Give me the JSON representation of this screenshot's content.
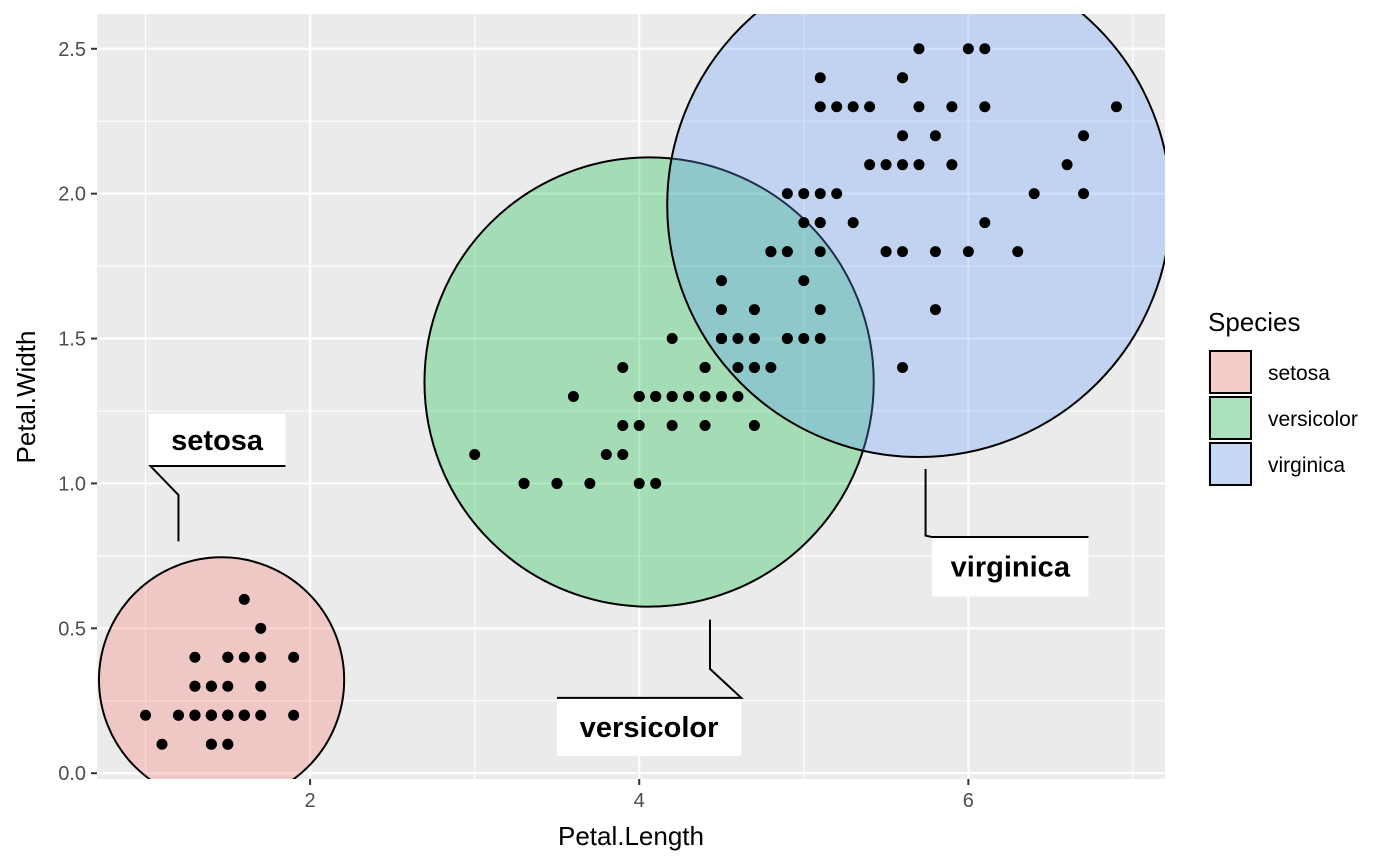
{
  "chart_data": {
    "type": "scatter",
    "xlabel": "Petal.Length",
    "ylabel": "Petal.Width",
    "xlim": [
      0.705,
      7.195
    ],
    "ylim": [
      -0.02,
      2.62
    ],
    "x_ticks": [
      2,
      4,
      6
    ],
    "y_ticks": [
      0.0,
      0.5,
      1.0,
      1.5,
      2.0,
      2.5
    ],
    "x_tick_labels": [
      "2",
      "4",
      "6"
    ],
    "y_tick_labels": [
      "0.0",
      "0.5",
      "1.0",
      "1.5",
      "2.0",
      "2.5"
    ],
    "grid": true,
    "legend": {
      "title": "Species",
      "position": "right",
      "entries": [
        {
          "label": "setosa",
          "color": "#F8766D"
        },
        {
          "label": "versicolor",
          "color": "#00BA38"
        },
        {
          "label": "virginica",
          "color": "#619CFF"
        }
      ]
    },
    "circles": [
      {
        "group": "setosa",
        "center_x": 1.462,
        "center_y": 0.322,
        "radius_x_units": 0.745,
        "fill": "#F8766D"
      },
      {
        "group": "versicolor",
        "center_x": 4.06,
        "center_y": 1.35,
        "radius_x_units": 1.365,
        "fill": "#00BA38"
      },
      {
        "group": "virginica",
        "center_x": 5.7,
        "center_y": 1.96,
        "radius_x_units": 1.53,
        "fill": "#619CFF"
      }
    ],
    "annotations": [
      {
        "label": "setosa",
        "line": [
          [
            1.2,
            0.8
          ],
          [
            1.2,
            0.96
          ],
          [
            1.03,
            1.06
          ],
          [
            1.85,
            1.06
          ]
        ],
        "box_x": [
          1.02,
          1.85
        ],
        "box_y": [
          1.06,
          1.24
        ]
      },
      {
        "label": "versicolor",
        "line": [
          [
            4.43,
            0.53
          ],
          [
            4.43,
            0.36
          ],
          [
            4.62,
            0.26
          ],
          [
            3.5,
            0.26
          ]
        ],
        "box_x": [
          3.5,
          4.62
        ],
        "box_y": [
          0.06,
          0.26
        ]
      },
      {
        "label": "virginica",
        "line": [
          [
            5.74,
            1.05
          ],
          [
            5.74,
            0.82
          ],
          [
            5.78,
            0.815
          ],
          [
            6.73,
            0.815
          ]
        ],
        "box_x": [
          5.78,
          6.73
        ],
        "box_y": [
          0.61,
          0.815
        ]
      }
    ],
    "series": [
      {
        "name": "setosa",
        "points": [
          [
            1.4,
            0.2
          ],
          [
            1.4,
            0.2
          ],
          [
            1.3,
            0.2
          ],
          [
            1.5,
            0.2
          ],
          [
            1.4,
            0.2
          ],
          [
            1.7,
            0.4
          ],
          [
            1.4,
            0.3
          ],
          [
            1.5,
            0.2
          ],
          [
            1.4,
            0.2
          ],
          [
            1.5,
            0.1
          ],
          [
            1.5,
            0.2
          ],
          [
            1.6,
            0.2
          ],
          [
            1.4,
            0.1
          ],
          [
            1.1,
            0.1
          ],
          [
            1.2,
            0.2
          ],
          [
            1.5,
            0.4
          ],
          [
            1.3,
            0.4
          ],
          [
            1.4,
            0.3
          ],
          [
            1.7,
            0.3
          ],
          [
            1.5,
            0.3
          ],
          [
            1.7,
            0.2
          ],
          [
            1.5,
            0.4
          ],
          [
            1.0,
            0.2
          ],
          [
            1.7,
            0.5
          ],
          [
            1.9,
            0.2
          ],
          [
            1.6,
            0.2
          ],
          [
            1.6,
            0.4
          ],
          [
            1.5,
            0.2
          ],
          [
            1.4,
            0.2
          ],
          [
            1.6,
            0.2
          ],
          [
            1.6,
            0.2
          ],
          [
            1.5,
            0.4
          ],
          [
            1.5,
            0.1
          ],
          [
            1.4,
            0.2
          ],
          [
            1.5,
            0.2
          ],
          [
            1.2,
            0.2
          ],
          [
            1.3,
            0.2
          ],
          [
            1.4,
            0.1
          ],
          [
            1.3,
            0.2
          ],
          [
            1.5,
            0.2
          ],
          [
            1.3,
            0.3
          ],
          [
            1.3,
            0.3
          ],
          [
            1.3,
            0.2
          ],
          [
            1.6,
            0.6
          ],
          [
            1.9,
            0.4
          ],
          [
            1.4,
            0.3
          ],
          [
            1.6,
            0.2
          ],
          [
            1.4,
            0.2
          ],
          [
            1.5,
            0.2
          ],
          [
            1.4,
            0.2
          ]
        ]
      },
      {
        "name": "versicolor",
        "points": [
          [
            4.7,
            1.4
          ],
          [
            4.5,
            1.5
          ],
          [
            4.9,
            1.5
          ],
          [
            4.0,
            1.3
          ],
          [
            4.6,
            1.5
          ],
          [
            4.5,
            1.3
          ],
          [
            4.7,
            1.6
          ],
          [
            3.3,
            1.0
          ],
          [
            4.6,
            1.3
          ],
          [
            3.9,
            1.4
          ],
          [
            3.5,
            1.0
          ],
          [
            4.2,
            1.5
          ],
          [
            4.0,
            1.0
          ],
          [
            4.7,
            1.4
          ],
          [
            3.6,
            1.3
          ],
          [
            4.4,
            1.4
          ],
          [
            4.5,
            1.5
          ],
          [
            4.1,
            1.0
          ],
          [
            4.5,
            1.5
          ],
          [
            3.9,
            1.1
          ],
          [
            4.8,
            1.8
          ],
          [
            4.0,
            1.3
          ],
          [
            4.9,
            1.5
          ],
          [
            4.7,
            1.2
          ],
          [
            4.3,
            1.3
          ],
          [
            4.4,
            1.4
          ],
          [
            4.8,
            1.4
          ],
          [
            5.0,
            1.7
          ],
          [
            4.5,
            1.5
          ],
          [
            3.5,
            1.0
          ],
          [
            3.8,
            1.1
          ],
          [
            3.7,
            1.0
          ],
          [
            3.9,
            1.2
          ],
          [
            5.1,
            1.6
          ],
          [
            4.5,
            1.5
          ],
          [
            4.5,
            1.6
          ],
          [
            4.7,
            1.5
          ],
          [
            4.4,
            1.3
          ],
          [
            4.1,
            1.3
          ],
          [
            4.0,
            1.3
          ],
          [
            4.4,
            1.2
          ],
          [
            4.6,
            1.4
          ],
          [
            4.0,
            1.2
          ],
          [
            3.3,
            1.0
          ],
          [
            4.2,
            1.3
          ],
          [
            4.2,
            1.2
          ],
          [
            4.2,
            1.3
          ],
          [
            4.3,
            1.3
          ],
          [
            3.0,
            1.1
          ],
          [
            4.1,
            1.3
          ]
        ]
      },
      {
        "name": "virginica",
        "points": [
          [
            6.0,
            2.5
          ],
          [
            5.1,
            1.9
          ],
          [
            5.9,
            2.1
          ],
          [
            5.6,
            1.8
          ],
          [
            5.8,
            2.2
          ],
          [
            6.6,
            2.1
          ],
          [
            4.5,
            1.7
          ],
          [
            6.3,
            1.8
          ],
          [
            5.8,
            1.8
          ],
          [
            6.1,
            2.5
          ],
          [
            5.1,
            2.0
          ],
          [
            5.3,
            1.9
          ],
          [
            5.5,
            2.1
          ],
          [
            5.0,
            2.0
          ],
          [
            5.1,
            2.4
          ],
          [
            5.3,
            2.3
          ],
          [
            5.5,
            1.8
          ],
          [
            6.7,
            2.2
          ],
          [
            6.9,
            2.3
          ],
          [
            5.0,
            1.5
          ],
          [
            5.7,
            2.3
          ],
          [
            4.9,
            2.0
          ],
          [
            6.7,
            2.0
          ],
          [
            4.9,
            1.8
          ],
          [
            5.7,
            2.1
          ],
          [
            6.0,
            1.8
          ],
          [
            4.8,
            1.8
          ],
          [
            4.9,
            1.8
          ],
          [
            5.6,
            2.1
          ],
          [
            5.8,
            1.6
          ],
          [
            6.1,
            1.9
          ],
          [
            6.4,
            2.0
          ],
          [
            5.6,
            2.2
          ],
          [
            5.1,
            1.5
          ],
          [
            5.6,
            1.4
          ],
          [
            6.1,
            2.3
          ],
          [
            5.6,
            2.4
          ],
          [
            5.5,
            1.8
          ],
          [
            4.8,
            1.8
          ],
          [
            5.4,
            2.1
          ],
          [
            5.6,
            2.4
          ],
          [
            5.1,
            2.3
          ],
          [
            5.1,
            1.9
          ],
          [
            5.9,
            2.3
          ],
          [
            5.7,
            2.5
          ],
          [
            5.2,
            2.3
          ],
          [
            5.0,
            1.9
          ],
          [
            5.2,
            2.0
          ],
          [
            5.4,
            2.3
          ],
          [
            5.1,
            1.8
          ]
        ]
      }
    ]
  }
}
